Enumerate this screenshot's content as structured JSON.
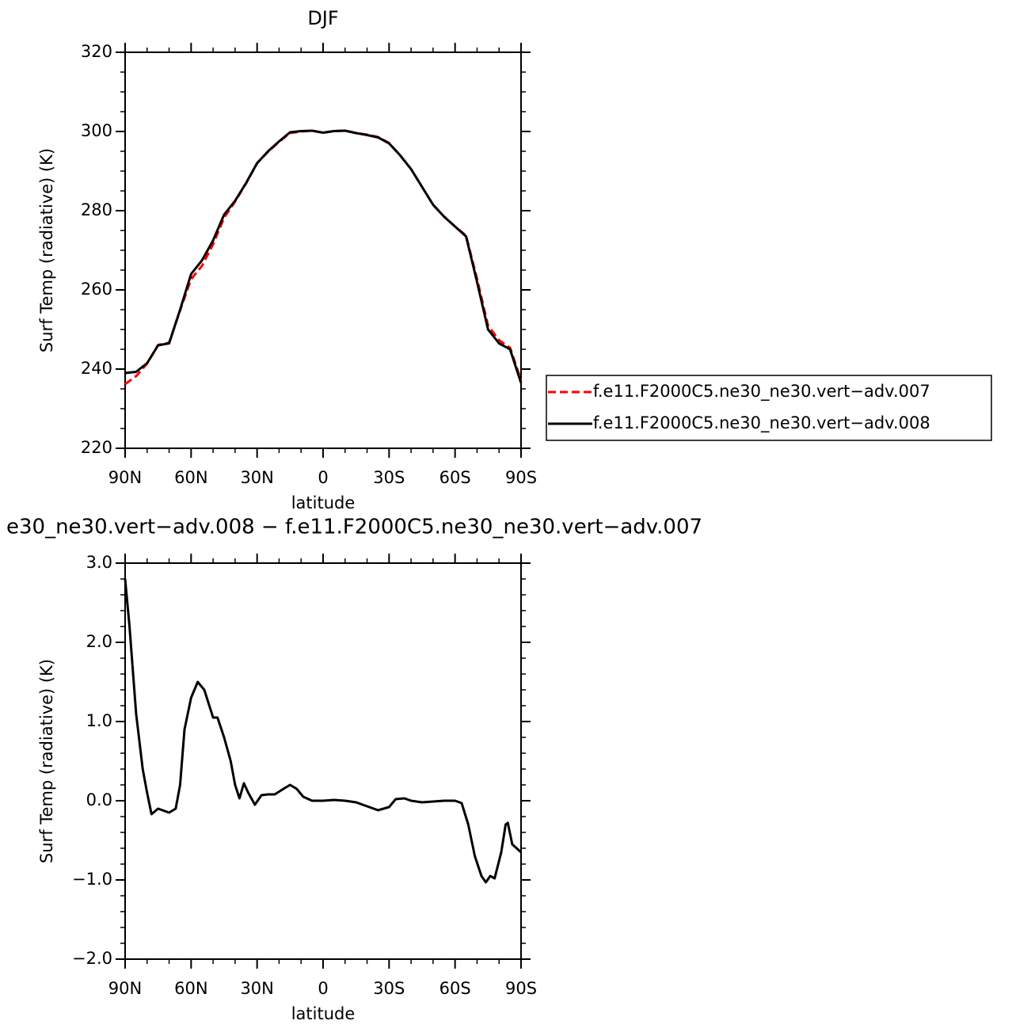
{
  "chart_data": [
    {
      "type": "line",
      "title": "DJF",
      "ylabel": "Surf Temp (radiative) (K)",
      "xlabel": "latitude",
      "xlim": [
        90,
        -90
      ],
      "xticks": [
        {
          "value": 90,
          "label": "90N"
        },
        {
          "value": 60,
          "label": "60N"
        },
        {
          "value": 30,
          "label": "30N"
        },
        0,
        {
          "value": -30,
          "label": "30S"
        },
        {
          "value": -60,
          "label": "60S"
        },
        {
          "value": -90,
          "label": "90S"
        }
      ],
      "ylim": [
        220,
        320
      ],
      "yticks": [
        220,
        240,
        260,
        280,
        300,
        320
      ],
      "legend": "right",
      "x": [
        90,
        85,
        80,
        75,
        70,
        65,
        60,
        55,
        50,
        45,
        40,
        35,
        30,
        25,
        20,
        15,
        10,
        5,
        0,
        -5,
        -10,
        -15,
        -20,
        -25,
        -30,
        -35,
        -40,
        -45,
        -50,
        -55,
        -60,
        -65,
        -70,
        -75,
        -80,
        -85,
        -90
      ],
      "series": [
        {
          "name": "f.e11.F2000C5.ne30_ne30.vert−adv.007",
          "color": "#ff0000",
          "dashed": true,
          "values": [
            236.2,
            238.2,
            241.4,
            246.1,
            246.65,
            254.8,
            262.7,
            266.1,
            271.5,
            278.2,
            282.3,
            286.9,
            292,
            294.9,
            297.4,
            299.6,
            300,
            300.2,
            299.7,
            300.1,
            300.2,
            299.6,
            299.2,
            298.6,
            297.1,
            294,
            290.5,
            286,
            281.5,
            278.5,
            276,
            273.7,
            262.8,
            251,
            247.3,
            245.4,
            237.2
          ]
        },
        {
          "name": "f.e11.F2000C5.ne30_ne30.vert−adv.008",
          "color": "#000000",
          "dashed": false,
          "values": [
            239,
            239.3,
            241.5,
            246,
            246.5,
            255,
            264,
            267.5,
            272.5,
            279,
            282.5,
            287,
            292,
            295,
            297.5,
            299.8,
            300.1,
            300.2,
            299.7,
            300.1,
            300.2,
            299.6,
            299.1,
            298.5,
            297,
            294,
            290.5,
            286,
            281.5,
            278.5,
            276,
            273.5,
            262,
            250,
            246.5,
            245,
            236.5
          ]
        }
      ]
    },
    {
      "type": "line",
      "title": "e30_ne30.vert−adv.008 − f.e11.F2000C5.ne30_ne30.vert−adv.007",
      "ylabel": "Surf Temp (radiative) (K)",
      "xlabel": "latitude",
      "xlim": [
        90,
        -90
      ],
      "xticks": [
        {
          "value": 90,
          "label": "90N"
        },
        {
          "value": 60,
          "label": "60N"
        },
        {
          "value": 30,
          "label": "30N"
        },
        0,
        {
          "value": -30,
          "label": "30S"
        },
        {
          "value": -60,
          "label": "60S"
        },
        {
          "value": -90,
          "label": "90S"
        }
      ],
      "ylim": [
        -2,
        3
      ],
      "yticks": [
        {
          "value": -2,
          "label": "−2.0"
        },
        {
          "value": -1,
          "label": "−1.0"
        },
        {
          "value": 0,
          "label": "0.0"
        },
        {
          "value": 1,
          "label": "1.0"
        },
        {
          "value": 2,
          "label": "2.0"
        },
        {
          "value": 3,
          "label": "3.0"
        }
      ],
      "x": [
        90,
        88,
        85,
        82,
        80,
        78,
        75,
        72,
        70,
        67,
        65,
        63,
        60,
        57,
        54,
        50,
        48,
        45,
        42,
        40,
        38,
        36,
        34,
        31,
        28,
        25,
        22,
        18,
        15,
        12,
        9,
        5,
        0,
        -5,
        -10,
        -15,
        -20,
        -25,
        -30,
        -33,
        -37,
        -40,
        -45,
        -50,
        -55,
        -60,
        -63,
        -66,
        -69,
        -72,
        -74,
        -76,
        -78,
        -81,
        -83,
        -84,
        -86,
        -88,
        -90
      ],
      "series": [
        {
          "color": "#000000",
          "dashed": false,
          "values": [
            2.8,
            2.2,
            1.1,
            0.4,
            0.1,
            -0.17,
            -0.1,
            -0.13,
            -0.15,
            -0.1,
            0.2,
            0.9,
            1.3,
            1.5,
            1.4,
            1.05,
            1.05,
            0.8,
            0.5,
            0.2,
            0.03,
            0.22,
            0.1,
            -0.05,
            0.07,
            0.08,
            0.08,
            0.15,
            0.2,
            0.15,
            0.05,
            0,
            0,
            0.01,
            0,
            -0.02,
            -0.07,
            -0.12,
            -0.08,
            0.02,
            0.03,
            0,
            -0.02,
            -0.01,
            0,
            0,
            -0.03,
            -0.3,
            -0.7,
            -0.95,
            -1.03,
            -0.95,
            -0.98,
            -0.65,
            -0.3,
            -0.28,
            -0.55,
            -0.6,
            -0.65
          ]
        }
      ]
    }
  ]
}
